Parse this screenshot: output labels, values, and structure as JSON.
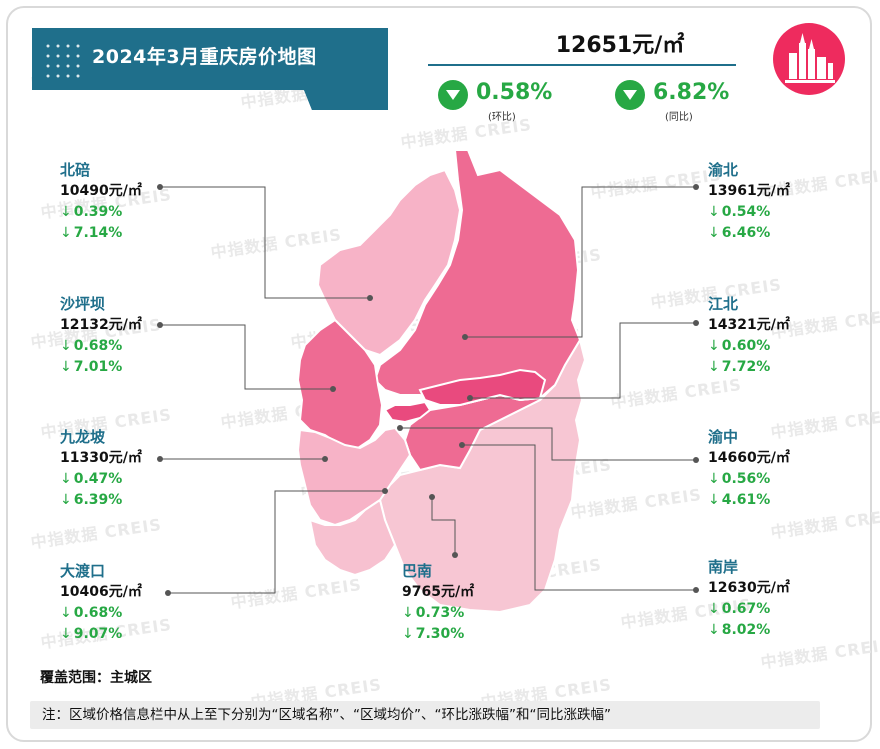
{
  "header": {
    "title": "2024年3月重庆房价地图",
    "avg_price": "12651元/㎡",
    "mom_value": "0.58%",
    "mom_label": "(环比)",
    "yoy_value": "6.82%",
    "yoy_label": "(同比)"
  },
  "watermark": "中指数据 CREIS",
  "districts": [
    {
      "key": "beibei",
      "name": "北碚",
      "price": "10490元/㎡",
      "mom": "0.39%",
      "yoy": "7.14%"
    },
    {
      "key": "shapingba",
      "name": "沙坪坝",
      "price": "12132元/㎡",
      "mom": "0.68%",
      "yoy": "7.01%"
    },
    {
      "key": "jiulongpo",
      "name": "九龙坡",
      "price": "11330元/㎡",
      "mom": "0.47%",
      "yoy": "6.39%"
    },
    {
      "key": "dadukou",
      "name": "大渡口",
      "price": "10406元/㎡",
      "mom": "0.68%",
      "yoy": "9.07%"
    },
    {
      "key": "banan",
      "name": "巴南",
      "price": "9765元/㎡",
      "mom": "0.73%",
      "yoy": "7.30%"
    },
    {
      "key": "yubei",
      "name": "渝北",
      "price": "13961元/㎡",
      "mom": "0.54%",
      "yoy": "6.46%"
    },
    {
      "key": "jiangbei",
      "name": "江北",
      "price": "14321元/㎡",
      "mom": "0.60%",
      "yoy": "7.72%"
    },
    {
      "key": "yuzhong",
      "name": "渝中",
      "price": "14660元/㎡",
      "mom": "0.56%",
      "yoy": "4.61%"
    },
    {
      "key": "nanan",
      "name": "南岸",
      "price": "12630元/㎡",
      "mom": "0.67%",
      "yoy": "8.02%"
    }
  ],
  "down_arrow": "↓",
  "footer": {
    "coverage": "覆盖范围：主城区",
    "note": "注：区域价格信息栏中从上至下分别为“区域名称”、“区域均价”、“环比涨跌幅”和“同比涨跌幅”"
  },
  "colors": {
    "accent": "#1f6f8b",
    "down_green": "#27a844",
    "map_light": "#f7c1d0",
    "map_mid": "#f597b3",
    "map_dark": "#ee6b93",
    "map_darkest": "#e94a7e",
    "logo_pink": "#ee2b5e"
  }
}
